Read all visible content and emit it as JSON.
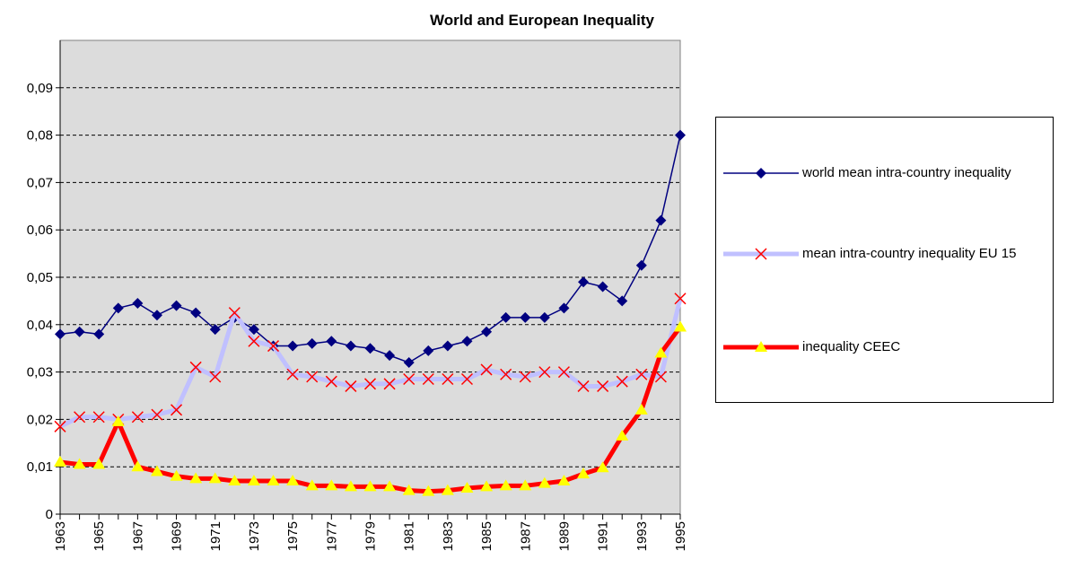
{
  "chart_data": {
    "type": "line",
    "title": "World and European Inequality",
    "categories": [
      "1963",
      null,
      "1965",
      null,
      "1967",
      null,
      "1969",
      null,
      "1971",
      null,
      "1973",
      null,
      "1975",
      null,
      "1977",
      null,
      "1979",
      null,
      "1981",
      null,
      "1983",
      null,
      "1985",
      null,
      "1987",
      null,
      "1989",
      null,
      "1991",
      null,
      "1993",
      null,
      "1995"
    ],
    "series": [
      {
        "name": "world mean intra-country inequality",
        "color": "#000080",
        "marker": "diamond",
        "line_width": 1.5,
        "values": [
          0.038,
          0.0385,
          0.038,
          0.0435,
          0.0445,
          0.042,
          0.044,
          0.0425,
          0.039,
          0.0415,
          0.039,
          0.0355,
          0.0355,
          0.036,
          0.0365,
          0.0355,
          0.035,
          0.0335,
          0.032,
          0.0345,
          0.0355,
          0.0365,
          0.0385,
          0.0415,
          0.0415,
          0.0415,
          0.0435,
          0.049,
          0.048,
          0.045,
          0.0525,
          0.062,
          0.08
        ]
      },
      {
        "name": "mean intra-country inequality EU 15",
        "color": "#c0c0ff",
        "marker_color": "#ff0000",
        "marker": "x",
        "line_width": 5,
        "values": [
          0.0185,
          0.0205,
          0.0205,
          0.02,
          0.0205,
          0.021,
          0.022,
          0.031,
          0.029,
          0.0425,
          0.0365,
          0.0355,
          0.0295,
          0.029,
          0.028,
          0.027,
          0.0275,
          0.0275,
          0.0285,
          0.0285,
          0.0285,
          0.0285,
          0.0305,
          0.0295,
          0.029,
          0.03,
          0.03,
          0.027,
          0.027,
          0.028,
          0.0295,
          0.029,
          0.0455
        ]
      },
      {
        "name": "inequality CEEC",
        "color": "#ff0000",
        "marker_color": "#ffff00",
        "marker": "triangle",
        "line_width": 5,
        "values": [
          0.011,
          0.0105,
          0.0105,
          0.0195,
          0.01,
          0.009,
          0.008,
          0.0075,
          0.0075,
          0.007,
          0.007,
          0.007,
          0.007,
          0.006,
          0.006,
          0.0058,
          0.0058,
          0.0058,
          0.005,
          0.0048,
          0.005,
          0.0055,
          0.0058,
          0.006,
          0.006,
          0.0065,
          0.007,
          0.0085,
          0.0098,
          0.0165,
          0.022,
          0.034,
          0.0395
        ]
      }
    ],
    "ylim": [
      0,
      0.1
    ],
    "yticks": [
      0,
      {
        "value": 0.01,
        "label": "0,01"
      },
      {
        "value": 0.02,
        "label": "0,02"
      },
      {
        "value": 0.03,
        "label": "0,03"
      },
      {
        "value": 0.04,
        "label": "0,04"
      },
      {
        "value": 0.05,
        "label": "0,05"
      },
      {
        "value": 0.06,
        "label": "0,06"
      },
      {
        "value": 0.07,
        "label": "0,07"
      },
      {
        "value": 0.08,
        "label": "0,08"
      },
      {
        "value": 0.09,
        "label": "0,09"
      }
    ],
    "grid": true,
    "legend": "right"
  }
}
